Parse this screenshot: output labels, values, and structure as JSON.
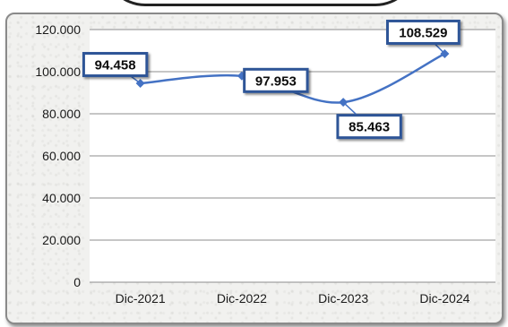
{
  "chart_data": {
    "type": "line",
    "title": "",
    "xlabel": "",
    "ylabel": "",
    "categories": [
      "Dic-2021",
      "Dic-2022",
      "Dic-2023",
      "Dic-2024"
    ],
    "series": [
      {
        "values": [
          94458,
          97953,
          85463,
          108529
        ],
        "labels": [
          "94.458",
          "97.953",
          "85.463",
          "108.529"
        ],
        "color": "#4472C4"
      }
    ],
    "ylim": [
      0,
      120000
    ],
    "yticks": [
      0,
      20000,
      40000,
      60000,
      80000,
      100000,
      120000
    ],
    "ytick_labels": [
      "0",
      "20.000",
      "40.000",
      "60.000",
      "80.000",
      "100.000",
      "120.000"
    ],
    "grid": true,
    "legend": "none"
  },
  "colors": {
    "line": "#4472C4",
    "label_border": "#2E5597",
    "grid": "#8c8c8c",
    "plot_bg": "#ffffff"
  }
}
